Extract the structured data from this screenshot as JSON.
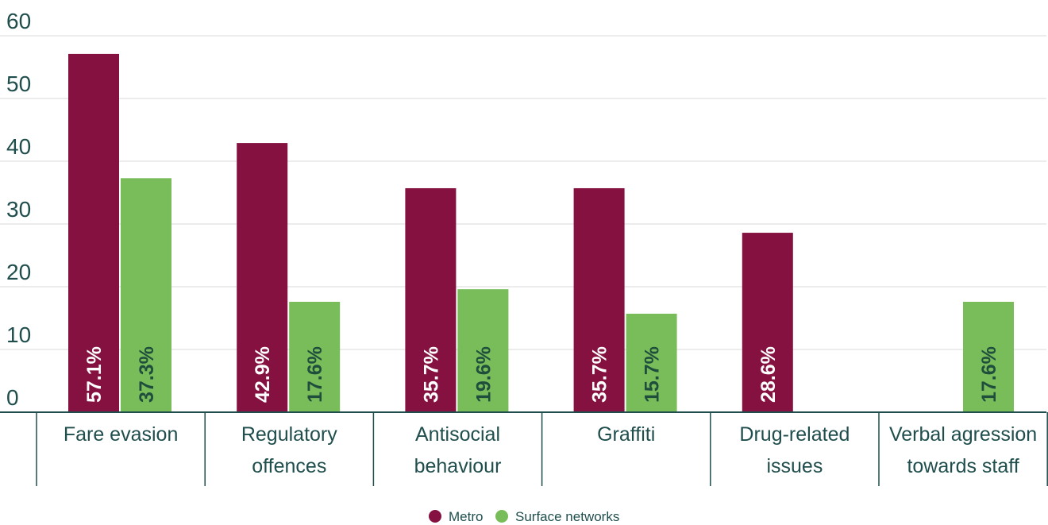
{
  "chart_data": {
    "type": "bar",
    "title": "",
    "xlabel": "",
    "ylabel": "",
    "ylim": [
      0,
      60
    ],
    "yticks": [
      0,
      10,
      20,
      30,
      40,
      50,
      60
    ],
    "grid": true,
    "legend_position": "bottom-center",
    "categories": [
      [
        "Fare evasion"
      ],
      [
        "Regulatory",
        "offences"
      ],
      [
        "Antisocial",
        "behaviour"
      ],
      [
        "Graffiti"
      ],
      [
        "Drug-related",
        "issues"
      ],
      [
        "Verbal agression",
        "towards staff"
      ]
    ],
    "series": [
      {
        "name": "Metro",
        "color": "#84113f",
        "values": [
          57.1,
          42.9,
          35.7,
          35.7,
          28.6,
          null
        ],
        "labels": [
          "57.1%",
          "42.9%",
          "35.7%",
          "35.7%",
          "28.6%",
          null
        ]
      },
      {
        "name": "Surface networks",
        "color": "#79bd5a",
        "values": [
          37.3,
          17.6,
          19.6,
          15.7,
          null,
          17.6
        ],
        "labels": [
          "37.3%",
          "17.6%",
          "19.6%",
          "15.7%",
          null,
          "17.6%"
        ]
      }
    ]
  }
}
